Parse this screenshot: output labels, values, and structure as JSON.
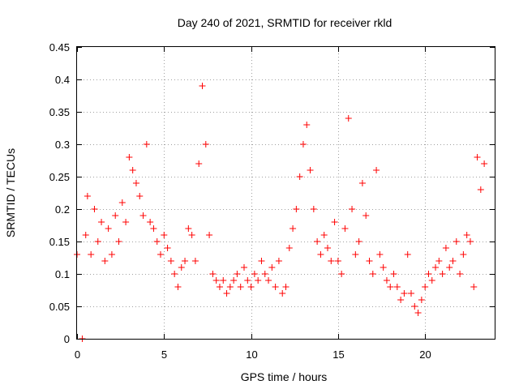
{
  "chart_data": {
    "type": "scatter",
    "title": "Day 240 of 2021, SRMTID for receiver rkld",
    "xlabel": "GPS time / hours",
    "ylabel": "SRMTID / TECUs",
    "xlim": [
      0,
      24
    ],
    "ylim": [
      0,
      0.45
    ],
    "xticks": [
      0,
      5,
      10,
      15,
      20
    ],
    "yticks": [
      0,
      0.05,
      0.1,
      0.15,
      0.2,
      0.25,
      0.3,
      0.35,
      0.4,
      0.45
    ],
    "grid": true,
    "marker": "plus",
    "series_color": "#ff0000",
    "series": [
      {
        "x": [
          0.0,
          0.3,
          0.5,
          0.6,
          0.8,
          1.0,
          1.2,
          1.4,
          1.6,
          1.8,
          2.0,
          2.2,
          2.4,
          2.6,
          2.8,
          3.0,
          3.2,
          3.4,
          3.6,
          3.8,
          4.0,
          4.2,
          4.4,
          4.6,
          4.8,
          5.0,
          5.2,
          5.4,
          5.6,
          5.8,
          6.0,
          6.2,
          6.4,
          6.6,
          6.8,
          7.0,
          7.2,
          7.4,
          7.6,
          7.8,
          8.0,
          8.2,
          8.4,
          8.6,
          8.8,
          9.0,
          9.2,
          9.4,
          9.6,
          9.8,
          10.0,
          10.2,
          10.4,
          10.6,
          10.8,
          11.0,
          11.2,
          11.4,
          11.6,
          11.8,
          12.0,
          12.2,
          12.4,
          12.6,
          12.8,
          13.0,
          13.2,
          13.4,
          13.6,
          13.8,
          14.0,
          14.2,
          14.4,
          14.6,
          14.8,
          15.0,
          15.2,
          15.4,
          15.6,
          15.8,
          16.0,
          16.2,
          16.4,
          16.6,
          16.8,
          17.0,
          17.2,
          17.4,
          17.6,
          17.8,
          18.0,
          18.2,
          18.4,
          18.6,
          18.8,
          19.0,
          19.2,
          19.4,
          19.6,
          19.8,
          20.0,
          20.2,
          20.4,
          20.6,
          20.8,
          21.0,
          21.2,
          21.4,
          21.6,
          21.8,
          22.0,
          22.2,
          22.4,
          22.6,
          22.8,
          23.0,
          23.2,
          23.4
        ],
        "y": [
          0.13,
          0.0,
          0.16,
          0.22,
          0.13,
          0.2,
          0.15,
          0.18,
          0.12,
          0.17,
          0.13,
          0.19,
          0.15,
          0.21,
          0.18,
          0.28,
          0.26,
          0.24,
          0.22,
          0.19,
          0.3,
          0.18,
          0.17,
          0.15,
          0.13,
          0.16,
          0.14,
          0.12,
          0.1,
          0.08,
          0.11,
          0.12,
          0.17,
          0.16,
          0.12,
          0.27,
          0.39,
          0.3,
          0.16,
          0.1,
          0.09,
          0.08,
          0.09,
          0.07,
          0.08,
          0.09,
          0.1,
          0.08,
          0.11,
          0.09,
          0.08,
          0.1,
          0.09,
          0.12,
          0.1,
          0.09,
          0.11,
          0.08,
          0.12,
          0.07,
          0.08,
          0.14,
          0.17,
          0.2,
          0.25,
          0.3,
          0.33,
          0.26,
          0.2,
          0.15,
          0.13,
          0.16,
          0.14,
          0.12,
          0.18,
          0.12,
          0.1,
          0.17,
          0.34,
          0.2,
          0.13,
          0.15,
          0.24,
          0.19,
          0.12,
          0.1,
          0.26,
          0.13,
          0.11,
          0.09,
          0.08,
          0.1,
          0.08,
          0.06,
          0.07,
          0.13,
          0.07,
          0.05,
          0.04,
          0.06,
          0.08,
          0.1,
          0.09,
          0.11,
          0.12,
          0.1,
          0.14,
          0.11,
          0.12,
          0.15,
          0.1,
          0.13,
          0.16,
          0.15,
          0.08,
          0.28,
          0.23,
          0.27
        ]
      }
    ]
  }
}
